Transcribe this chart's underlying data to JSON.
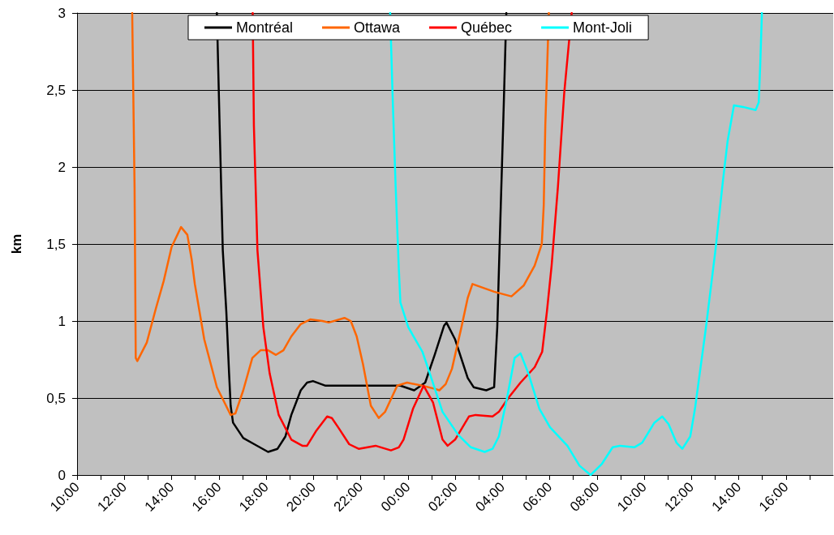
{
  "chart_data": {
    "type": "line",
    "ylabel": "km",
    "xlim": [
      "--01-01T10:00",
      "--01-02T18:00"
    ],
    "ylim": [
      0,
      3
    ],
    "xticks": [
      {
        "value": "--01-01T10:00",
        "label": "10:00"
      },
      {
        "value": "--01-01T11:00",
        "label": null
      },
      {
        "value": "--01-01T12:00",
        "label": "12:00"
      },
      {
        "value": "--01-01T13:00",
        "label": null
      },
      {
        "value": "--01-01T14:00",
        "label": "14:00"
      },
      {
        "value": "--01-01T15:00",
        "label": null
      },
      {
        "value": "--01-01T16:00",
        "label": "16:00"
      },
      {
        "value": "--01-01T17:00",
        "label": null
      },
      {
        "value": "--01-01T18:00",
        "label": "18:00"
      },
      {
        "value": "--01-01T19:00",
        "label": null
      },
      {
        "value": "--01-01T20:00",
        "label": "20:00"
      },
      {
        "value": "--01-01T21:00",
        "label": null
      },
      {
        "value": "--01-01T22:00",
        "label": "22:00"
      },
      {
        "value": "--01-01T23:00",
        "label": null
      },
      {
        "value": "--01-02T00:00",
        "label": "00:00"
      },
      {
        "value": "--01-02T01:00",
        "label": null
      },
      {
        "value": "--01-02T02:00",
        "label": "02:00"
      },
      {
        "value": "--01-02T03:00",
        "label": null
      },
      {
        "value": "--01-02T04:00",
        "label": "04:00"
      },
      {
        "value": "--01-02T05:00",
        "label": null
      },
      {
        "value": "--01-02T06:00",
        "label": "06:00"
      },
      {
        "value": "--01-02T07:00",
        "label": null
      },
      {
        "value": "--01-02T08:00",
        "label": "08:00"
      },
      {
        "value": "--01-02T09:00",
        "label": null
      },
      {
        "value": "--01-02T10:00",
        "label": "10:00"
      },
      {
        "value": "--01-02T11:00",
        "label": null
      },
      {
        "value": "--01-02T12:00",
        "label": "12:00"
      },
      {
        "value": "--01-02T13:00",
        "label": null
      },
      {
        "value": "--01-02T14:00",
        "label": "14:00"
      },
      {
        "value": "--01-02T15:00",
        "label": null
      },
      {
        "value": "--01-02T16:00",
        "label": "16:00"
      },
      {
        "value": "--01-02T17:00",
        "label": null
      }
    ],
    "yticks": [
      0,
      {
        "value": 0.5,
        "label": "0,5"
      },
      1,
      {
        "value": 1.5,
        "label": "1,5"
      },
      2,
      {
        "value": 2.5,
        "label": "2,5"
      },
      3
    ],
    "grid": "y",
    "legend": "top",
    "marker": "none",
    "line_style": "solid",
    "series": [
      {
        "name": "Montréal",
        "color": "#000000",
        "x": [
          "--01-01T15:55",
          "--01-01T16:02",
          "--01-01T16:10",
          "--01-01T16:19",
          "--01-01T16:26",
          "--01-01T16:30",
          "--01-01T16:36",
          "--01-01T17:02",
          "--01-01T17:30",
          "--01-01T18:05",
          "--01-01T18:29",
          "--01-01T18:49",
          "--01-01T19:04",
          "--01-01T19:28",
          "--01-01T19:44",
          "--01-01T19:59",
          "--01-01T20:31",
          "--01-01T23:41",
          "--01-02T00:16",
          "--01-02T00:44",
          "--01-02T01:08",
          "--01-02T01:32",
          "--01-02T01:38",
          "--01-02T02:00",
          "--01-02T02:32",
          "--01-02T02:47",
          "--01-02T03:19",
          "--01-02T03:39",
          "--01-02T03:47",
          "--01-02T03:55",
          "--01-02T04:02",
          "--01-02T04:10"
        ],
        "values": [
          3,
          2.27,
          1.46,
          1.06,
          0.66,
          0.45,
          0.34,
          0.24,
          0.2,
          0.15,
          0.17,
          0.25,
          0.39,
          0.55,
          0.6,
          0.61,
          0.58,
          0.58,
          0.55,
          0.6,
          0.78,
          0.97,
          0.99,
          0.88,
          0.63,
          0.57,
          0.55,
          0.57,
          0.96,
          1.67,
          2.27,
          3
        ]
      },
      {
        "name": "Ottawa",
        "color": "#ff6600",
        "x": [
          "--01-01T12:20",
          "--01-01T12:26",
          "--01-01T12:29",
          "--01-01T12:33",
          "--01-01T12:57",
          "--01-01T13:20",
          "--01-01T13:40",
          "--01-01T14:00",
          "--01-01T14:24",
          "--01-01T14:40",
          "--01-01T14:51",
          "--01-01T14:59",
          "--01-01T15:23",
          "--01-01T15:55",
          "--01-01T16:30",
          "--01-01T16:42",
          "--01-01T17:02",
          "--01-01T17:25",
          "--01-01T17:46",
          "--01-01T18:05",
          "--01-01T18:25",
          "--01-01T18:44",
          "--01-01T19:04",
          "--01-01T19:28",
          "--01-01T19:52",
          "--01-01T20:23",
          "--01-01T20:39",
          "--01-01T21:19",
          "--01-01T21:35",
          "--01-01T21:50",
          "--01-01T22:06",
          "--01-01T22:26",
          "--01-01T22:46",
          "--01-01T23:02",
          "--01-01T23:33",
          "--01-01T23:58",
          "--01-02T00:36",
          "--01-02T01:08",
          "--01-02T01:20",
          "--01-02T01:36",
          "--01-02T01:52",
          "--01-02T02:16",
          "--01-02T02:32",
          "--01-02T02:44",
          "--01-02T03:39",
          "--01-02T04:23",
          "--01-02T04:54",
          "--01-02T05:22",
          "--01-02T05:40",
          "--01-02T05:45",
          "--01-02T05:49",
          "--01-02T05:58"
        ],
        "values": [
          3,
          1.87,
          0.76,
          0.74,
          0.86,
          1.08,
          1.26,
          1.48,
          1.61,
          1.56,
          1.4,
          1.24,
          0.88,
          0.57,
          0.39,
          0.4,
          0.55,
          0.76,
          0.81,
          0.81,
          0.78,
          0.81,
          0.9,
          0.98,
          1.01,
          1.0,
          0.99,
          1.02,
          1.0,
          0.9,
          0.72,
          0.45,
          0.37,
          0.41,
          0.58,
          0.6,
          0.58,
          0.56,
          0.55,
          0.59,
          0.69,
          0.96,
          1.15,
          1.24,
          1.19,
          1.16,
          1.23,
          1.36,
          1.5,
          1.75,
          2.27,
          3
        ]
      },
      {
        "name": "Québec",
        "color": "#ff0000",
        "x": [
          "--01-01T17:26",
          "--01-01T17:29",
          "--01-01T17:38",
          "--01-01T17:53",
          "--01-01T18:09",
          "--01-01T18:32",
          "--01-01T19:04",
          "--01-01T19:32",
          "--01-01T19:44",
          "--01-01T20:08",
          "--01-01T20:35",
          "--01-01T20:47",
          "--01-01T21:03",
          "--01-01T21:31",
          "--01-01T21:55",
          "--01-01T22:38",
          "--01-01T23:17",
          "--01-01T23:37",
          "--01-01T23:49",
          "--01-02T00:13",
          "--01-02T00:40",
          "--01-02T01:04",
          "--01-02T01:28",
          "--01-02T01:41",
          "--01-02T02:00",
          "--01-02T02:35",
          "--01-02T02:52",
          "--01-02T03:35",
          "--01-02T03:51",
          "--01-02T04:15",
          "--01-02T04:46",
          "--01-02T05:22",
          "--01-02T05:41",
          "--01-02T05:53",
          "--01-02T06:05",
          "--01-02T06:21",
          "--01-02T06:37",
          "--01-02T06:56"
        ],
        "values": [
          3,
          2.27,
          1.46,
          0.96,
          0.66,
          0.39,
          0.23,
          0.19,
          0.19,
          0.29,
          0.38,
          0.37,
          0.31,
          0.2,
          0.17,
          0.19,
          0.16,
          0.18,
          0.23,
          0.43,
          0.58,
          0.47,
          0.23,
          0.19,
          0.23,
          0.38,
          0.39,
          0.38,
          0.41,
          0.5,
          0.6,
          0.7,
          0.8,
          1.06,
          1.36,
          1.87,
          2.48,
          3
        ]
      },
      {
        "name": "Mont-Joli",
        "color": "#00ffff",
        "x": [
          "--01-01T23:15",
          "--01-01T23:21",
          "--01-01T23:29",
          "--01-01T23:37",
          "--01-01T23:41",
          "--01-02T00:01",
          "--01-02T00:37",
          "--01-02T00:53",
          "--01-02T01:28",
          "--01-02T02:08",
          "--01-02T02:40",
          "--01-02T03:15",
          "--01-02T03:35",
          "--01-02T03:51",
          "--01-02T04:11",
          "--01-02T04:31",
          "--01-02T04:46",
          "--01-02T05:06",
          "--01-02T05:34",
          "--01-02T06:01",
          "--01-02T06:45",
          "--01-02T07:16",
          "--01-02T07:44",
          "--01-02T08:12",
          "--01-02T08:40",
          "--01-02T08:59",
          "--01-02T09:35",
          "--01-02T09:55",
          "--01-02T10:26",
          "--01-02T10:46",
          "--01-02T11:02",
          "--01-02T11:22",
          "--01-02T11:37",
          "--01-02T11:57",
          "--01-02T12:09",
          "--01-02T12:37",
          "--01-02T13:01",
          "--01-02T13:20",
          "--01-02T13:32",
          "--01-02T13:48",
          "--01-02T14:11",
          "--01-02T14:43",
          "--01-02T14:51",
          "--01-02T14:55",
          "--01-02T14:59"
        ],
        "values": [
          3,
          2.48,
          1.87,
          1.34,
          1.12,
          0.96,
          0.8,
          0.68,
          0.41,
          0.26,
          0.18,
          0.15,
          0.17,
          0.25,
          0.49,
          0.76,
          0.79,
          0.66,
          0.43,
          0.31,
          0.19,
          0.06,
          0,
          0.07,
          0.18,
          0.19,
          0.18,
          0.21,
          0.34,
          0.38,
          0.33,
          0.21,
          0.17,
          0.25,
          0.43,
          0.96,
          1.46,
          1.91,
          2.17,
          2.4,
          2.39,
          2.37,
          2.42,
          2.68,
          3
        ]
      }
    ]
  }
}
